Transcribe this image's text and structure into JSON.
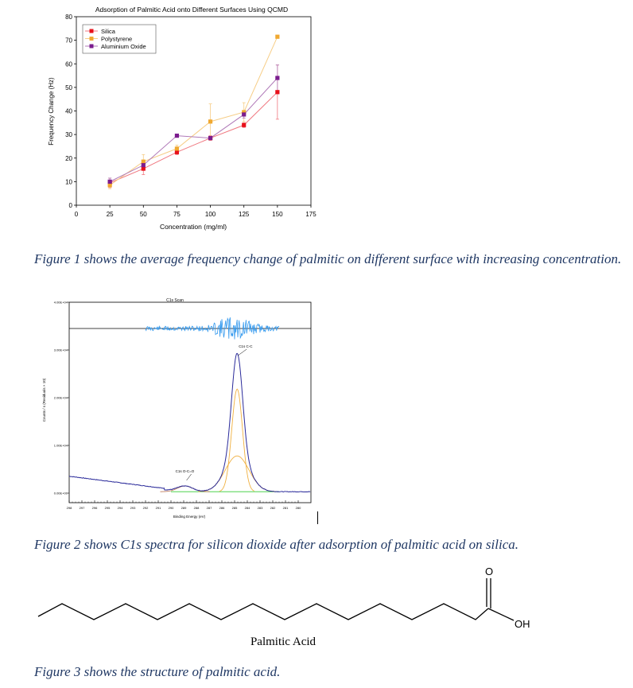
{
  "figure1": {
    "chart_data": {
      "type": "line",
      "title": "Adsorption of Palmitic Acid onto Different Surfaces Using QCMD",
      "xlabel": "Concentration (mg/ml)",
      "ylabel": "Frequency Change (Hz)",
      "xlim": [
        0,
        175
      ],
      "ylim": [
        0,
        80
      ],
      "xticks": [
        0,
        25,
        50,
        75,
        100,
        125,
        150,
        175
      ],
      "yticks": [
        0,
        10,
        20,
        30,
        40,
        50,
        60,
        70,
        80
      ],
      "x": [
        25,
        50,
        75,
        100,
        125,
        150
      ],
      "legend_position": "top-left",
      "grid": false,
      "series": [
        {
          "name": "Silica",
          "color": "#e8101a",
          "line_color": "#f07880",
          "marker": "square",
          "values": [
            9.5,
            15.5,
            22.5,
            28.5,
            34,
            48
          ],
          "errors": [
            2,
            2.5,
            1,
            1,
            1,
            11.5
          ]
        },
        {
          "name": "Polystyrene",
          "color": "#f0a830",
          "line_color": "#f6cd86",
          "marker": "square",
          "values": [
            8.5,
            18.5,
            24,
            35.5,
            39.5,
            71.5
          ],
          "errors": [
            1.5,
            3,
            1.5,
            7.5,
            4,
            0
          ]
        },
        {
          "name": "Aluminium Oxide",
          "color": "#7b1c8e",
          "line_color": "#b07ab8",
          "marker": "square",
          "values": [
            10,
            17,
            29.5,
            28.5,
            38.5,
            54
          ],
          "errors": [
            1.5,
            1.5,
            0,
            0,
            1.5,
            5.5
          ]
        }
      ]
    },
    "caption": "Figure 1 shows the average frequency change of palmitic on different surface with increasing concentration."
  },
  "figure2": {
    "chart_data": {
      "type": "line",
      "title": "C1s Scan",
      "xlabel": "Binding Energy (eV)",
      "ylabel": "Counts / s  (Residuals × 10)",
      "xlim": [
        298,
        279
      ],
      "ylim": [
        0,
        40000
      ],
      "xticks": [
        298,
        297,
        296,
        295,
        294,
        293,
        292,
        291,
        290,
        289,
        288,
        287,
        286,
        285,
        284,
        283,
        282,
        281,
        280
      ],
      "yticks": [
        "0.00E+00",
        "1.00E+04",
        "2.00E+04",
        "3.00E+04",
        "4.00E+04"
      ],
      "ytick_values": [
        0,
        10000,
        20000,
        30000,
        40000
      ],
      "peaks": [
        {
          "label": "C1s C-C",
          "center_eV": 284.8,
          "height": 28500
        },
        {
          "label": "C1s O-C=O",
          "center_eV": 288.9,
          "height": 2500
        }
      ],
      "components": [
        {
          "name": "envelope",
          "color": "#2a2a9a"
        },
        {
          "name": "C-C component A",
          "color": "#f0b040",
          "center_eV": 284.8,
          "height": 21500,
          "fwhm": 1.0
        },
        {
          "name": "C-C component B",
          "color": "#f0b040",
          "center_eV": 284.8,
          "height": 7500,
          "fwhm": 2.2
        },
        {
          "name": "O-C=O component",
          "color": "#c08060",
          "center_eV": 288.9,
          "height": 1200,
          "fwhm": 1.4
        },
        {
          "name": "background",
          "color": "#33cc33"
        },
        {
          "name": "residuals",
          "color": "#3399ee"
        }
      ]
    },
    "caption": "Figure 2 shows C1s spectra for silicon dioxide after adsorption of palmitic acid on silica."
  },
  "figure3": {
    "molecule_name": "Palmitic Acid",
    "atom_o": "O",
    "atom_oh": "OH",
    "caption": "Figure 3 shows the structure of palmitic acid."
  }
}
